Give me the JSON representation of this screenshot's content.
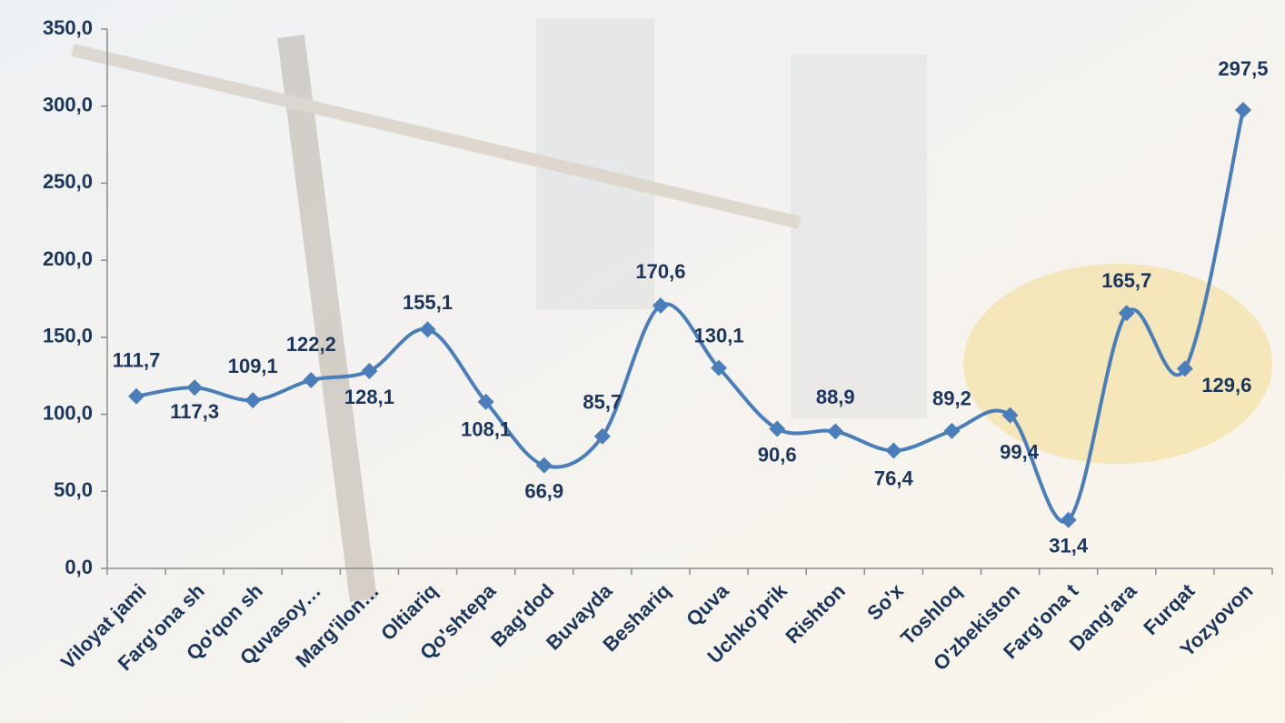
{
  "chart_data": {
    "type": "line",
    "categories": [
      "Viloyat jami",
      "Farg'ona sh",
      "Qo'qon sh",
      "Quvasoy…",
      "Marg'ilon…",
      "Oltiariq",
      "Qo'shtepa",
      "Bag'dod",
      "Buvayda",
      "Beshariq",
      "Quva",
      "Uchko'prik",
      "Rishton",
      "So'x",
      "Toshloq",
      "O'zbekiston",
      "Farg'ona t",
      "Dang'ara",
      "Furqat",
      "Yozyovon"
    ],
    "values": [
      111.7,
      117.3,
      109.1,
      122.2,
      128.1,
      155.1,
      108.1,
      66.9,
      85.7,
      170.6,
      130.1,
      90.6,
      88.9,
      76.4,
      89.2,
      99.4,
      31.4,
      165.7,
      129.6,
      297.5
    ],
    "value_labels": [
      "111,7",
      "117,3",
      "109,1",
      "122,2",
      "128,1",
      "155,1",
      "108,1",
      "66,9",
      "85,7",
      "170,6",
      "130,1",
      "90,6",
      "88,9",
      "76,4",
      "89,2",
      "99,4",
      "31,4",
      "165,7",
      "129,6",
      "297,5"
    ],
    "color": "#4a7ebb",
    "ylim": [
      0,
      350
    ],
    "yticks": [
      {
        "value": 0,
        "label": "0,0"
      },
      {
        "value": 50,
        "label": "50,0"
      },
      {
        "value": 100,
        "label": "100,0"
      },
      {
        "value": 150,
        "label": "150,0"
      },
      {
        "value": 200,
        "label": "200,0"
      },
      {
        "value": 250,
        "label": "250,0"
      },
      {
        "value": 300,
        "label": "300,0"
      },
      {
        "value": 350,
        "label": "350,0"
      }
    ],
    "grid": false
  }
}
